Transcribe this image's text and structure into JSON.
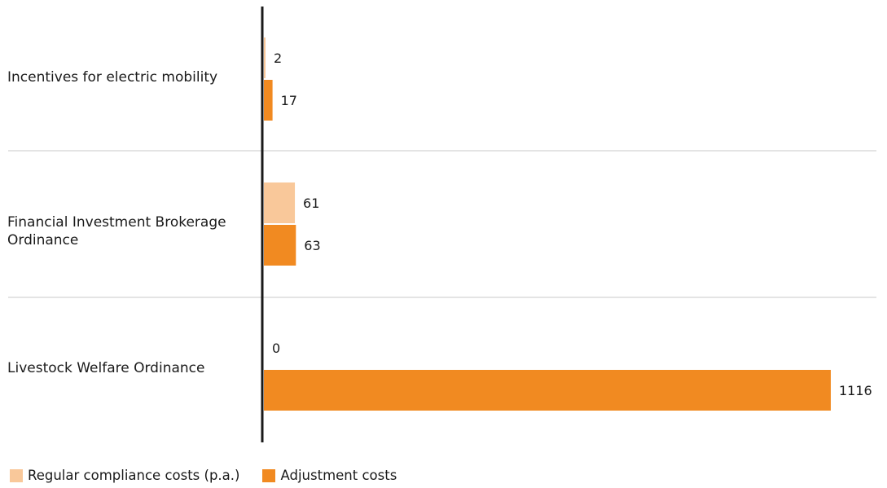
{
  "chart_data": {
    "type": "bar",
    "orientation": "horizontal",
    "categories": [
      "Incentives for electric mobility",
      "Financial Investment Brokerage Ordinance",
      "Livestock Welfare Ordinance"
    ],
    "series": [
      {
        "name": "Regular compliance costs (p.a.)",
        "color": "#f9c89a",
        "values": [
          2,
          61,
          0
        ],
        "labels": [
          "2",
          "61",
          "0"
        ]
      },
      {
        "name": "Adjustment costs",
        "color": "#f18a21",
        "values": [
          17,
          63,
          1116
        ],
        "labels": [
          "17",
          "63",
          "1116"
        ]
      }
    ],
    "xlim": [
      0,
      1116
    ],
    "grid": false,
    "legend_position": "bottom-left"
  }
}
